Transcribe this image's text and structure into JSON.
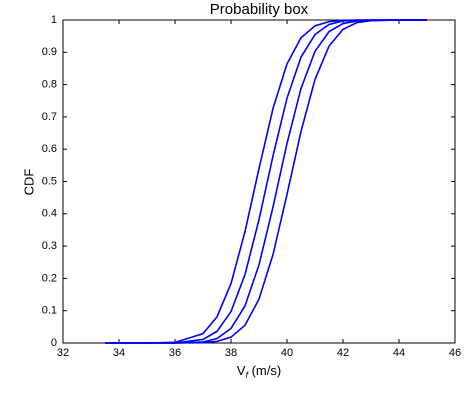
{
  "chart_data": {
    "type": "line",
    "title": "Probability box",
    "xlabel": [
      "V",
      "f",
      " (m/s)"
    ],
    "ylabel": "CDF",
    "x": [
      33.5,
      35,
      36,
      37,
      37.5,
      38,
      38.5,
      39,
      39.5,
      40,
      40.5,
      41,
      41.5,
      42,
      42.5,
      43,
      44,
      45
    ],
    "series": [
      {
        "color": "#0000ff",
        "values": [
          0,
          0,
          0.002,
          0.029,
          0.081,
          0.184,
          0.345,
          0.54,
          0.726,
          0.864,
          0.945,
          0.982,
          0.995,
          0.999,
          1,
          1,
          1,
          1
        ]
      },
      {
        "color": "#0000ff",
        "values": [
          0,
          0,
          0,
          0.011,
          0.036,
          0.097,
          0.212,
          0.382,
          0.579,
          0.758,
          0.885,
          0.955,
          0.986,
          0.997,
          0.999,
          1,
          1,
          1
        ]
      },
      {
        "color": "#0000ff",
        "values": [
          0,
          0,
          0,
          0.003,
          0.014,
          0.045,
          0.115,
          0.242,
          0.421,
          0.618,
          0.788,
          0.903,
          0.964,
          0.989,
          0.997,
          0.999,
          1,
          1
        ]
      },
      {
        "color": "#0000ff",
        "values": [
          0,
          0,
          0,
          0.001,
          0.005,
          0.018,
          0.055,
          0.136,
          0.274,
          0.46,
          0.655,
          0.816,
          0.919,
          0.971,
          0.992,
          0.998,
          1,
          1
        ]
      }
    ],
    "xlim": [
      32,
      46
    ],
    "xticks": [
      32,
      34,
      36,
      38,
      40,
      42,
      44,
      46
    ],
    "ylim": [
      0,
      1
    ],
    "yticks": [
      0,
      0.1,
      0.2,
      0.3,
      0.4,
      0.5,
      0.6,
      0.7,
      0.8,
      0.9,
      1
    ],
    "grid": false
  }
}
